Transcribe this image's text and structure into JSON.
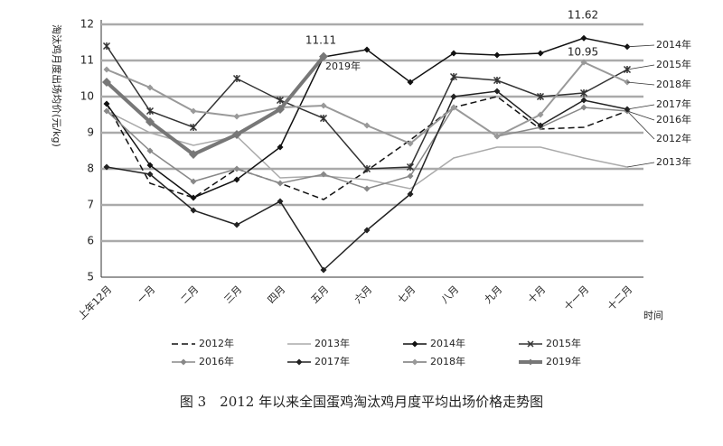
{
  "chart_data": {
    "type": "line",
    "title": "图 3　2012 年以来全国蛋鸡淘汰鸡月度平均出场价格走势图",
    "y_label": "淘汰鸡月度出场均价(元/kg)",
    "x_label": "时间",
    "categories": [
      "上年12月",
      "一月",
      "二月",
      "三月",
      "四月",
      "五月",
      "六月",
      "七月",
      "八月",
      "九月",
      "十月",
      "十一月",
      "十二月"
    ],
    "ylim": [
      5,
      12
    ],
    "yticks": [
      5,
      6,
      7,
      8,
      9,
      10,
      11,
      12
    ],
    "grid": true,
    "series": [
      {
        "name": "2012年",
        "color": "#111111",
        "marker": "none",
        "dashed": true,
        "width": 1.5,
        "values": [
          9.8,
          7.6,
          7.2,
          8.0,
          7.6,
          7.15,
          7.95,
          8.8,
          9.7,
          10.0,
          9.1,
          9.15,
          9.6
        ]
      },
      {
        "name": "2013年",
        "color": "#aaaaaa",
        "marker": "none",
        "dashed": false,
        "width": 1.5,
        "values": [
          9.6,
          9.0,
          8.65,
          8.9,
          7.75,
          7.8,
          7.7,
          7.45,
          8.3,
          8.6,
          8.6,
          8.3,
          8.05
        ]
      },
      {
        "name": "2014年",
        "color": "#111111",
        "marker": "diamond",
        "dashed": false,
        "width": 1.5,
        "values": [
          9.8,
          8.1,
          7.2,
          7.7,
          8.6,
          11.1,
          11.3,
          10.4,
          11.2,
          11.15,
          11.2,
          11.62,
          11.38
        ]
      },
      {
        "name": "2015年",
        "color": "#333333",
        "marker": "star",
        "dashed": false,
        "width": 1.5,
        "values": [
          11.4,
          9.6,
          9.15,
          10.5,
          9.9,
          9.4,
          8.0,
          8.05,
          10.55,
          10.45,
          10.0,
          10.1,
          10.75
        ]
      },
      {
        "name": "2016年",
        "color": "#888888",
        "marker": "diamond",
        "dashed": false,
        "width": 1.5,
        "values": [
          9.6,
          8.5,
          7.65,
          8.0,
          7.6,
          7.85,
          7.45,
          7.8,
          9.7,
          8.9,
          9.15,
          9.7,
          9.6
        ]
      },
      {
        "name": "2017年",
        "color": "#222222",
        "marker": "diamond",
        "dashed": false,
        "width": 1.5,
        "values": [
          8.05,
          7.85,
          6.85,
          6.45,
          7.1,
          5.2,
          6.3,
          7.3,
          10.0,
          10.15,
          9.2,
          9.9,
          9.65
        ]
      },
      {
        "name": "2018年",
        "color": "#999999",
        "marker": "diamond",
        "dashed": false,
        "width": 2,
        "values": [
          10.75,
          10.25,
          9.6,
          9.45,
          9.7,
          9.75,
          9.2,
          8.7,
          9.7,
          8.9,
          9.5,
          10.95,
          10.4
        ]
      },
      {
        "name": "2019年",
        "color": "#777777",
        "marker": "diamond",
        "dashed": false,
        "width": 4,
        "values": [
          10.4,
          9.3,
          8.4,
          8.95,
          9.65,
          11.11,
          null,
          null,
          null,
          null,
          null,
          null,
          null
        ]
      }
    ],
    "annotations": [
      "11.11",
      "11.62",
      "10.95"
    ]
  }
}
